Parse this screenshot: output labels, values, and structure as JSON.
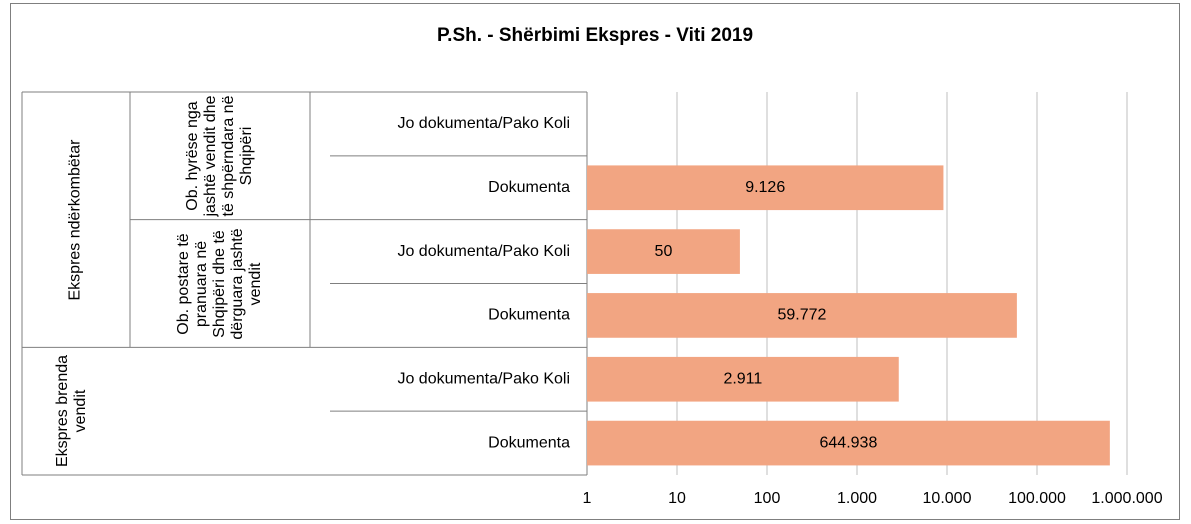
{
  "chart_data": {
    "type": "bar",
    "orientation": "horizontal",
    "title": "P.Sh. - Shërbimi Ekspres - Viti 2019",
    "category_groups": [
      {
        "name": "Ekspres ndërkombëtar",
        "groups": [
          {
            "name": "Ob. hyrëse nga jashtë vendit dhe të shpërndara në Shqipëri",
            "categories": [
              "Jo dokumenta/Pako Koli",
              "Dokumenta"
            ]
          },
          {
            "name": "Ob. postare të pranuara në Shqipëri dhe të dërguara jashtë vendit",
            "categories": [
              "Jo dokumenta/Pako Koli",
              "Dokumenta"
            ]
          }
        ]
      },
      {
        "name": "Ekspres brenda vendit",
        "categories": [
          "Jo dokumenta/Pako Koli",
          "Dokumenta"
        ]
      }
    ],
    "values": [
      null,
      9126,
      50,
      59772,
      2911,
      644938
    ],
    "value_labels": [
      null,
      "9.126",
      "50",
      "59.772",
      "2.911",
      "644.938"
    ],
    "color": "#f2a582",
    "xscale": "log",
    "xlim": [
      1,
      1000000
    ],
    "xticks": [
      1,
      10,
      100,
      {
        "value": 1000,
        "label": "1.000"
      },
      {
        "value": 10000,
        "label": "10.000"
      },
      {
        "value": 100000,
        "label": "100.000"
      },
      {
        "value": 1000000,
        "label": "1.000.000"
      }
    ],
    "grid": true
  }
}
